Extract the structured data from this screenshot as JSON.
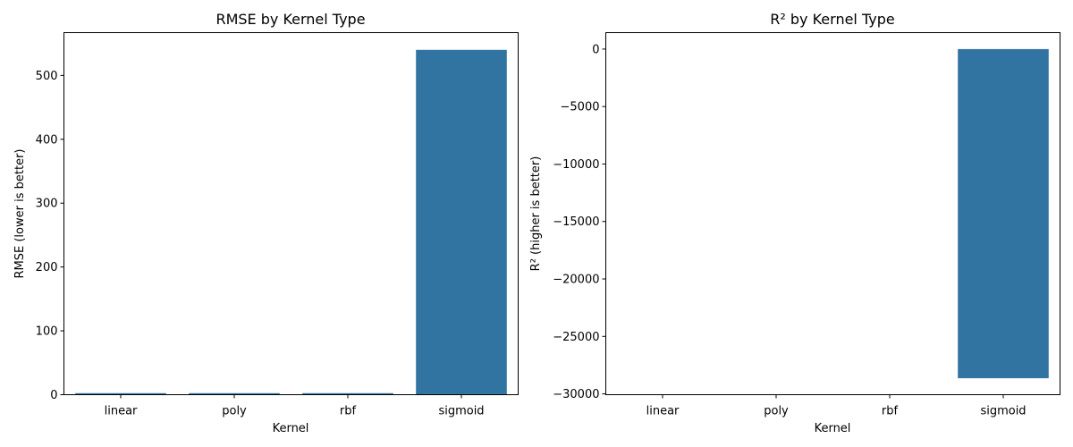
{
  "chart_data": [
    {
      "type": "bar",
      "title": "RMSE by Kernel Type",
      "xlabel": "Kernel",
      "ylabel": "RMSE (lower is better)",
      "categories": [
        "linear",
        "poly",
        "rbf",
        "sigmoid"
      ],
      "values": [
        2.4,
        2.4,
        2.4,
        540
      ],
      "ylim": [
        0,
        567
      ],
      "yticks": [
        0,
        100,
        200,
        300,
        400,
        500
      ],
      "ytick_labels": [
        "0",
        "100",
        "200",
        "300",
        "400",
        "500"
      ],
      "bar_color": "#3274a1",
      "grid": false,
      "legend": "none"
    },
    {
      "type": "bar",
      "title": "R² by Kernel Type",
      "xlabel": "Kernel",
      "ylabel": "R² (higher is better)",
      "categories": [
        "linear",
        "poly",
        "rbf",
        "sigmoid"
      ],
      "values": [
        0,
        0,
        0,
        -28640
      ],
      "ylim": [
        -30072,
        1432
      ],
      "yticks": [
        0,
        -5000,
        -10000,
        -15000,
        -20000,
        -25000,
        -30000
      ],
      "ytick_labels": [
        "0",
        "−5000",
        "−10000",
        "−15000",
        "−20000",
        "−25000",
        "−30000"
      ],
      "bar_color": "#3274a1",
      "grid": false,
      "legend": "none"
    }
  ]
}
